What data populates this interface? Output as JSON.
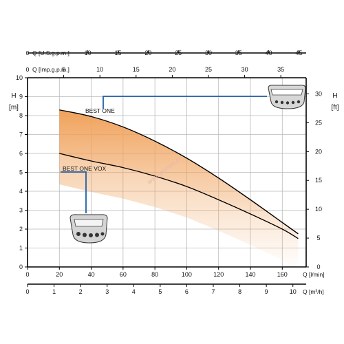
{
  "chart_data": {
    "type": "area",
    "colors": {
      "band": "#f0a25c",
      "callout": "#1f5fa8",
      "grid": "#b9b9b9"
    },
    "x_primary": {
      "label": "Q [l/min]",
      "ticks": [
        0,
        20,
        40,
        60,
        80,
        100,
        120,
        140,
        160
      ],
      "range": [
        0,
        175
      ]
    },
    "x_secondary": {
      "label": "Q [m³/h]",
      "ticks": [
        0,
        1,
        2,
        3,
        4,
        5,
        6,
        7,
        8,
        9,
        10
      ],
      "range": [
        0,
        10.5
      ]
    },
    "x_top1": {
      "label": "Q [U.S.g.p.m.]",
      "zero": "0",
      "ticks": [
        10,
        15,
        20,
        25,
        30,
        35,
        40,
        45
      ],
      "range": [
        0,
        46.2
      ]
    },
    "x_top2": {
      "label": "Q [Imp.g.p.m.]",
      "zero": "0",
      "ticks": [
        5,
        10,
        15,
        20,
        25,
        30,
        35
      ],
      "range": [
        0,
        38.5
      ]
    },
    "y_left": {
      "label_top": "H",
      "label_bottom": "[m]",
      "ticks": [
        0,
        1,
        2,
        3,
        4,
        5,
        6,
        7,
        8,
        9,
        10
      ],
      "range": [
        0,
        10
      ]
    },
    "y_right": {
      "label_top": "H",
      "label_bottom": "[ft]",
      "ticks": [
        0,
        5,
        10,
        15,
        20,
        25,
        30
      ],
      "range": [
        0,
        32.8
      ]
    },
    "grid": true,
    "series": [
      {
        "name": "BEST ONE",
        "x": [
          20,
          40,
          60,
          80,
          100,
          120,
          140,
          160,
          170
        ],
        "y": [
          8.3,
          7.95,
          7.4,
          6.65,
          5.75,
          4.7,
          3.55,
          2.35,
          1.75
        ]
      },
      {
        "name": "BEST ONE VOX",
        "x": [
          20,
          40,
          60,
          80,
          100,
          120,
          140,
          160,
          170
        ],
        "y": [
          6.0,
          5.6,
          5.25,
          4.8,
          4.25,
          3.55,
          2.8,
          2.0,
          1.5
        ]
      }
    ],
    "watermark": "www.pompa.pl"
  }
}
